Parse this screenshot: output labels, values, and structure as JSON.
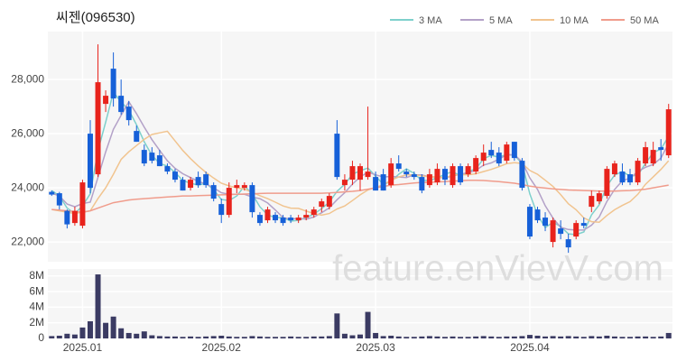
{
  "chart_data": {
    "type": "candlestick",
    "title": "씨젠(096530)",
    "watermark": "feature.enVievV.com",
    "legend": "top-right",
    "grid": true,
    "up_color": "#e8231c",
    "down_color": "#1660d8",
    "categories": [
      null,
      null,
      null,
      null,
      "2025.01",
      null,
      null,
      null,
      null,
      null,
      null,
      null,
      null,
      null,
      null,
      null,
      null,
      null,
      null,
      null,
      null,
      null,
      "2025.02",
      null,
      null,
      null,
      null,
      null,
      null,
      null,
      null,
      null,
      null,
      null,
      null,
      null,
      null,
      null,
      null,
      null,
      null,
      null,
      "2025.03",
      null,
      null,
      null,
      null,
      null,
      null,
      null,
      null,
      null,
      null,
      null,
      null,
      null,
      null,
      null,
      null,
      null,
      null,
      null,
      "2025.04",
      null,
      null,
      null,
      null,
      null,
      null,
      null,
      null,
      null,
      null,
      null,
      null,
      null,
      null,
      null,
      null,
      null,
      null
    ],
    "open": [
      23850,
      23800,
      23150,
      22700,
      22600,
      26000,
      24500,
      27100,
      28400,
      27400,
      27000,
      26100,
      25400,
      25300,
      25200,
      24800,
      24600,
      24300,
      24000,
      24400,
      24500,
      24100,
      23400,
      23000,
      24000,
      24000,
      24100,
      23000,
      22800,
      23000,
      22900,
      22900,
      22800,
      22900,
      23000,
      23300,
      23300,
      26000,
      24100,
      24300,
      24300,
      24400,
      24400,
      24500,
      24100,
      24900,
      24600,
      24500,
      24400,
      24100,
      24200,
      24700,
      24100,
      24800,
      24500,
      24600,
      25000,
      25400,
      25300,
      25000,
      25700,
      25000,
      23300,
      23200,
      22900,
      22000,
      22500,
      22100,
      22200,
      22700,
      23300,
      23500,
      23700,
      24500,
      24600,
      24500,
      24200,
      24900,
      24900,
      25500,
      25200
    ],
    "high": [
      23900,
      23850,
      23200,
      23300,
      24300,
      26500,
      29300,
      27600,
      29000,
      28000,
      27200,
      26300,
      25600,
      25500,
      25400,
      24900,
      24700,
      24400,
      24400,
      24600,
      24600,
      24200,
      23600,
      24200,
      24300,
      24200,
      24200,
      23100,
      23300,
      23100,
      23000,
      23000,
      23000,
      23200,
      23300,
      23600,
      23800,
      26500,
      24500,
      25000,
      24900,
      27000,
      24600,
      24700,
      25100,
      25200,
      24700,
      24600,
      24500,
      24700,
      24900,
      24800,
      24900,
      24900,
      24900,
      25200,
      25600,
      25700,
      25500,
      25700,
      25700,
      25100,
      23400,
      23300,
      23100,
      22900,
      22800,
      22300,
      22800,
      22900,
      23900,
      23900,
      24800,
      25000,
      24900,
      24700,
      25100,
      25700,
      25700,
      25800,
      27100
    ],
    "low": [
      23700,
      23200,
      22500,
      22600,
      22500,
      23800,
      24400,
      26800,
      27000,
      26700,
      26300,
      25700,
      24800,
      24900,
      24800,
      24500,
      24200,
      23900,
      23900,
      24000,
      24000,
      23500,
      22700,
      22900,
      23800,
      23900,
      22900,
      22600,
      22700,
      22700,
      22600,
      22700,
      22700,
      22800,
      22900,
      23100,
      23200,
      24300,
      23900,
      24100,
      23900,
      24300,
      23900,
      23900,
      24000,
      24600,
      24400,
      24300,
      23800,
      24000,
      24100,
      24100,
      24000,
      24100,
      24400,
      24500,
      24800,
      25100,
      24800,
      24900,
      25000,
      23900,
      22100,
      22700,
      22400,
      21800,
      22100,
      21600,
      22100,
      22500,
      23100,
      23400,
      23600,
      24400,
      24100,
      24100,
      24100,
      24800,
      24800,
      25000,
      25100
    ],
    "close": [
      23750,
      23350,
      22650,
      23150,
      24200,
      24000,
      27900,
      27400,
      27300,
      26800,
      26500,
      25700,
      24900,
      25000,
      24800,
      24600,
      24300,
      23900,
      24300,
      24100,
      24100,
      23600,
      23000,
      24000,
      24100,
      24100,
      23100,
      22700,
      23200,
      22800,
      22700,
      22800,
      22900,
      23000,
      23200,
      23500,
      23700,
      24400,
      24300,
      24800,
      24800,
      24600,
      23900,
      23900,
      24900,
      24700,
      24500,
      24400,
      23900,
      24500,
      24700,
      24300,
      24800,
      24200,
      24800,
      25100,
      25300,
      25200,
      24900,
      25600,
      25100,
      24000,
      22200,
      22800,
      22600,
      22800,
      22300,
      21800,
      22700,
      22600,
      23700,
      23800,
      24700,
      24900,
      24200,
      24200,
      25000,
      25500,
      25400,
      25400,
      26900
    ],
    "series": [
      {
        "name": "3 MA",
        "color": "#7ed0cc",
        "values": [
          23900,
          23700,
          23250,
          23050,
          23330,
          23780,
          25370,
          26430,
          27530,
          27170,
          26870,
          26330,
          25700,
          25200,
          24900,
          24800,
          24570,
          24270,
          24170,
          24100,
          24170,
          23930,
          23570,
          23530,
          23700,
          24070,
          23770,
          23300,
          23000,
          22900,
          22900,
          22770,
          22800,
          22900,
          23030,
          23230,
          23470,
          23870,
          24130,
          24500,
          24630,
          24730,
          24430,
          24130,
          24230,
          24500,
          24700,
          24530,
          24270,
          24270,
          24370,
          24500,
          24600,
          24430,
          24600,
          24700,
          25070,
          25200,
          25130,
          25230,
          25200,
          24900,
          23770,
          23000,
          22530,
          22730,
          22570,
          22300,
          22270,
          22370,
          23000,
          23370,
          24070,
          24470,
          24600,
          24430,
          24470,
          24900,
          25300,
          25430,
          25900
        ]
      },
      {
        "name": "5 MA",
        "color": "#b3a1c8",
        "values": [
          23800,
          23700,
          23400,
          23300,
          23420,
          23470,
          24380,
          25330,
          26160,
          26680,
          27180,
          26740,
          26240,
          25780,
          25380,
          25000,
          24720,
          24520,
          24380,
          24240,
          24140,
          24000,
          23820,
          23760,
          23760,
          23760,
          23660,
          23600,
          23440,
          23180,
          22900,
          22840,
          22880,
          22840,
          22920,
          23080,
          23260,
          23560,
          23820,
          24140,
          24400,
          24580,
          24480,
          24400,
          24420,
          24400,
          24380,
          24480,
          24480,
          24400,
          24400,
          24360,
          24440,
          24500,
          24560,
          24640,
          24840,
          24920,
          25060,
          25220,
          25220,
          24960,
          24360,
          23940,
          23340,
          22880,
          22540,
          22460,
          22440,
          22440,
          22620,
          22920,
          23500,
          23940,
          24260,
          24360,
          24600,
          24760,
          24860,
          25100,
          25640
        ]
      },
      {
        "name": "10 MA",
        "color": "#f1c48f",
        "values": [
          23200,
          23150,
          23100,
          23050,
          23100,
          23150,
          23600,
          24000,
          24500,
          25050,
          25330,
          25560,
          25790,
          25970,
          26030,
          26090,
          25730,
          25380,
          25080,
          24810,
          24570,
          24360,
          24170,
          24070,
          24000,
          23950,
          23830,
          23710,
          23600,
          23470,
          23330,
          23250,
          23240,
          23140,
          23050,
          22990,
          23050,
          23220,
          23330,
          23530,
          23740,
          23920,
          24020,
          24110,
          24280,
          24400,
          24480,
          24480,
          24440,
          24410,
          24400,
          24370,
          24460,
          24490,
          24480,
          24520,
          24600,
          24680,
          24780,
          24890,
          24930,
          24900,
          24640,
          24500,
          24280,
          24050,
          23750,
          23410,
          23190,
          22890,
          22750,
          22730,
          22980,
          23190,
          23350,
          23490,
          23760,
          24130,
          24400,
          24680,
          25000
        ]
      },
      {
        "name": "50 MA",
        "color": "#f09c8c",
        "values": [
          23200,
          23180,
          23150,
          23120,
          23100,
          23150,
          23250,
          23350,
          23450,
          23500,
          23550,
          23580,
          23600,
          23620,
          23640,
          23660,
          23680,
          23700,
          23700,
          23710,
          23720,
          23730,
          23740,
          23750,
          23760,
          23770,
          23780,
          23790,
          23800,
          23800,
          23800,
          23800,
          23800,
          23800,
          23800,
          23800,
          23810,
          23830,
          23850,
          23870,
          23900,
          23950,
          24000,
          24050,
          24100,
          24120,
          24150,
          24180,
          24200,
          24200,
          24220,
          24230,
          24250,
          24260,
          24280,
          24280,
          24270,
          24250,
          24230,
          24200,
          24170,
          24120,
          24060,
          24020,
          23990,
          23960,
          23940,
          23920,
          23910,
          23900,
          23890,
          23880,
          23880,
          23880,
          23890,
          23900,
          23920,
          23950,
          24000,
          24050,
          24100
        ]
      }
    ],
    "volume": {
      "axis": "y2",
      "color": "#3b3b63",
      "values": [
        300000,
        350000,
        600000,
        500000,
        1400000,
        2200000,
        8200000,
        2000000,
        2800000,
        1300000,
        700000,
        600000,
        900000,
        400000,
        300000,
        250000,
        250000,
        200000,
        250000,
        200000,
        250000,
        300000,
        350000,
        250000,
        200000,
        200000,
        300000,
        250000,
        200000,
        200000,
        200000,
        250000,
        200000,
        200000,
        250000,
        250000,
        300000,
        3200000,
        600000,
        400000,
        500000,
        3400000,
        700000,
        300000,
        350000,
        250000,
        200000,
        200000,
        250000,
        300000,
        250000,
        200000,
        250000,
        200000,
        200000,
        250000,
        300000,
        250000,
        200000,
        250000,
        250000,
        300000,
        450000,
        350000,
        250000,
        300000,
        250000,
        300000,
        250000,
        200000,
        300000,
        250000,
        350000,
        250000,
        200000,
        200000,
        250000,
        250000,
        200000,
        250000,
        700000
      ]
    },
    "ylim": [
      21270,
      29770
    ],
    "yticks": [
      {
        "value": 22000,
        "label": "22,000"
      },
      {
        "value": 24000,
        "label": "24,000"
      },
      {
        "value": 26000,
        "label": "26,000"
      },
      {
        "value": 28000,
        "label": "28,000"
      }
    ],
    "y2lim": [
      0,
      8900000
    ],
    "y2ticks": [
      0,
      {
        "value": 2000000,
        "label": "2M"
      },
      {
        "value": 4000000,
        "label": "4M"
      },
      {
        "value": 6000000,
        "label": "6M"
      },
      {
        "value": 8000000,
        "label": "8M"
      }
    ]
  }
}
